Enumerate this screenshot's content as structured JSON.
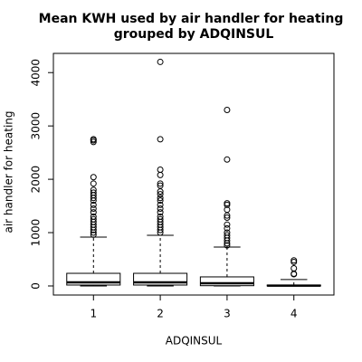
{
  "chart_data": {
    "type": "box",
    "title_lines": [
      "Mean KWH used by air handler for heating",
      "grouped by ADQINSUL"
    ],
    "xlabel": "ADQINSUL",
    "ylabel": "air handler for heating",
    "categories": [
      "1",
      "2",
      "3",
      "4"
    ],
    "xlim": [
      0.4,
      4.6
    ],
    "ylim": [
      -170,
      4360
    ],
    "yticks": [
      0,
      1000,
      2000,
      3000,
      4000
    ],
    "boxes": [
      {
        "min": 0,
        "q1": 17,
        "median": 68,
        "q3": 237,
        "max": 915,
        "outliers": [
          2750,
          2730,
          2700,
          2040,
          1920,
          1800,
          1750,
          1700,
          1650,
          1600,
          1520,
          1450,
          1380,
          1300,
          1250,
          1200,
          1150,
          1100,
          1050,
          1000,
          960
        ]
      },
      {
        "min": 0,
        "q1": 17,
        "median": 68,
        "q3": 237,
        "max": 950,
        "outliers": [
          4200,
          2750,
          2180,
          2080,
          1920,
          1880,
          1770,
          1720,
          1650,
          1600,
          1520,
          1450,
          1380,
          1300,
          1250,
          1200,
          1150,
          1100,
          1050,
          1000
        ]
      },
      {
        "min": 0,
        "q1": 5,
        "median": 51,
        "q3": 170,
        "max": 730,
        "outliers": [
          3300,
          2370,
          1550,
          1520,
          1430,
          1320,
          1280,
          1150,
          1080,
          1000,
          950,
          900,
          850,
          800,
          760
        ]
      },
      {
        "min": 0,
        "q1": 0,
        "median": 5,
        "q3": 17,
        "max": 120,
        "outliers": [
          480,
          450,
          330,
          230,
          220
        ]
      }
    ]
  }
}
